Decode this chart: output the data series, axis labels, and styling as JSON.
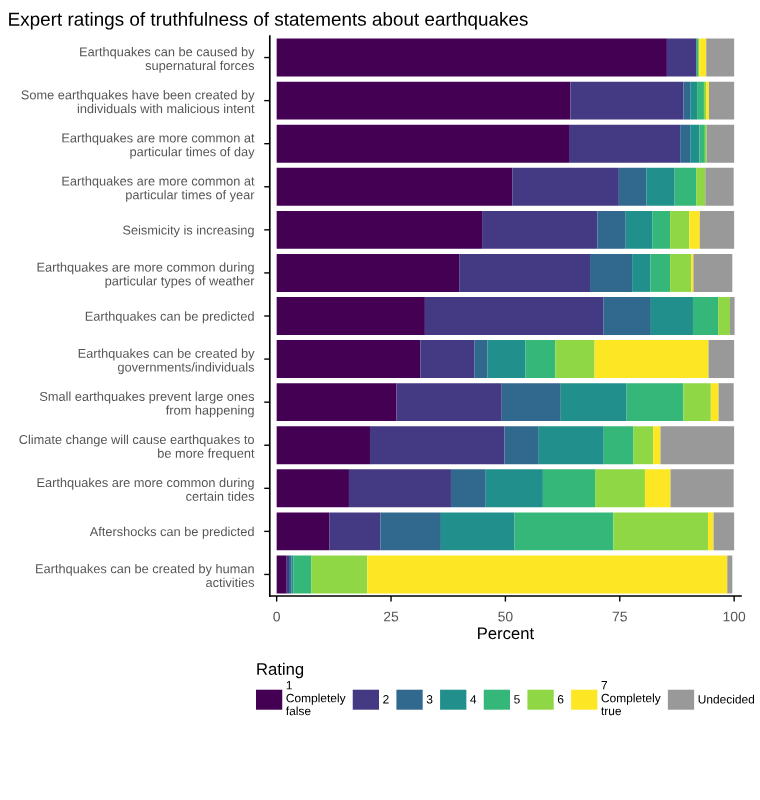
{
  "chart_data": {
    "type": "bar",
    "orientation": "horizontal",
    "stacked": true,
    "title": "Expert ratings of truthfulness of statements about earthquakes",
    "xlabel": "Percent",
    "legend_title": "Rating",
    "legend": "bottom",
    "grid": false,
    "categories": [
      "Earthquakes can be caused by\nsupernatural forces",
      "Some earthquakes have been created by\nindividuals with malicious intent",
      "Earthquakes are more common at\nparticular times of day",
      "Earthquakes are more common at\nparticular times of year",
      "Seismicity is increasing",
      "Earthquakes are more common during\nparticular types of weather",
      "Earthquakes can be predicted",
      "Earthquakes can be created by\ngovernments/individuals",
      "Small earthquakes prevent large ones\nfrom happening",
      "Climate change will cause earthquakes to\nbe more frequent",
      "Earthquakes are more common during\ncertain tides",
      "Aftershocks can be predicted",
      "Earthquakes can be created by human\nactivities"
    ],
    "xlim": [
      -1.5,
      101.5
    ],
    "xticks": [
      0,
      25,
      50,
      75,
      100
    ],
    "series": [
      {
        "name": "1\nCompletely\nfalse",
        "color": "#440154",
        "values": [
          85.3,
          64.2,
          63.9,
          51.5,
          44.9,
          39.9,
          32.4,
          31.4,
          26.2,
          20.4,
          15.8,
          11.5,
          2.2
        ]
      },
      {
        "name": "2",
        "color": "#443a83",
        "values": [
          6.5,
          24.7,
          24.3,
          23.3,
          25.2,
          28.6,
          39.0,
          11.8,
          23.0,
          29.4,
          22.3,
          11.2,
          0.5
        ]
      },
      {
        "name": "3",
        "color": "#31688e",
        "values": [
          0,
          1.5,
          2.2,
          6.0,
          6.2,
          9.2,
          10.4,
          2.9,
          12.9,
          7.5,
          7.6,
          13.2,
          0.5
        ]
      },
      {
        "name": "4",
        "color": "#21908d",
        "values": [
          0,
          1.5,
          2.0,
          6.2,
          5.8,
          4.0,
          9.2,
          8.3,
          14.4,
          14.2,
          12.5,
          16.1,
          0.5
        ]
      },
      {
        "name": "5",
        "color": "#35b779",
        "values": [
          0.3,
          1.5,
          1.2,
          4.7,
          3.9,
          4.3,
          5.5,
          6.5,
          12.4,
          6.5,
          11.4,
          21.6,
          3.9
        ]
      },
      {
        "name": "6",
        "color": "#8fd744",
        "values": [
          0.3,
          0.5,
          0.4,
          2.0,
          4.2,
          4.6,
          2.6,
          8.6,
          6.0,
          4.3,
          10.9,
          20.7,
          12.2
        ]
      },
      {
        "name": "7\nCompletely\ntrue",
        "color": "#fde725",
        "values": [
          1.5,
          0.6,
          0,
          0,
          2.3,
          0.5,
          0,
          24.9,
          1.7,
          1.6,
          5.6,
          1.2,
          78.7
        ]
      },
      {
        "name": "Undecided",
        "color": "#999999",
        "values": [
          6.1,
          5.5,
          6.0,
          6.2,
          7.5,
          8.5,
          1.0,
          5.6,
          3.3,
          16.1,
          13.8,
          4.5,
          1.1
        ]
      }
    ]
  }
}
